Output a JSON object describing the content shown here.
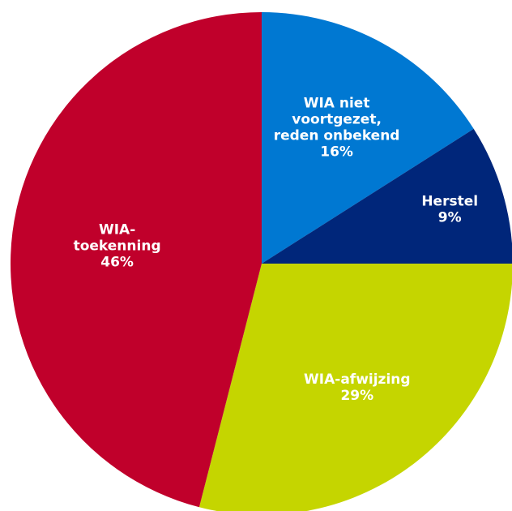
{
  "chart_data": {
    "type": "pie",
    "title": "",
    "start": "12 o'clock",
    "direction": "clockwise",
    "slices": [
      {
        "label_lines": [
          "WIA niet",
          "voortgezet,",
          "reden onbekend"
        ],
        "value_label": "16%",
        "value": 16,
        "color": "#0078d2"
      },
      {
        "label_lines": [
          "Herstel"
        ],
        "value_label": "9%",
        "value": 9,
        "color": "#00267a"
      },
      {
        "label_lines": [
          "WIA-afwijzing"
        ],
        "value_label": "29%",
        "value": 29,
        "color": "#c5d500"
      },
      {
        "label_lines": [
          "WIA-",
          "toekenning"
        ],
        "value_label": "46%",
        "value": 46,
        "color": "#c0002b"
      }
    ]
  }
}
